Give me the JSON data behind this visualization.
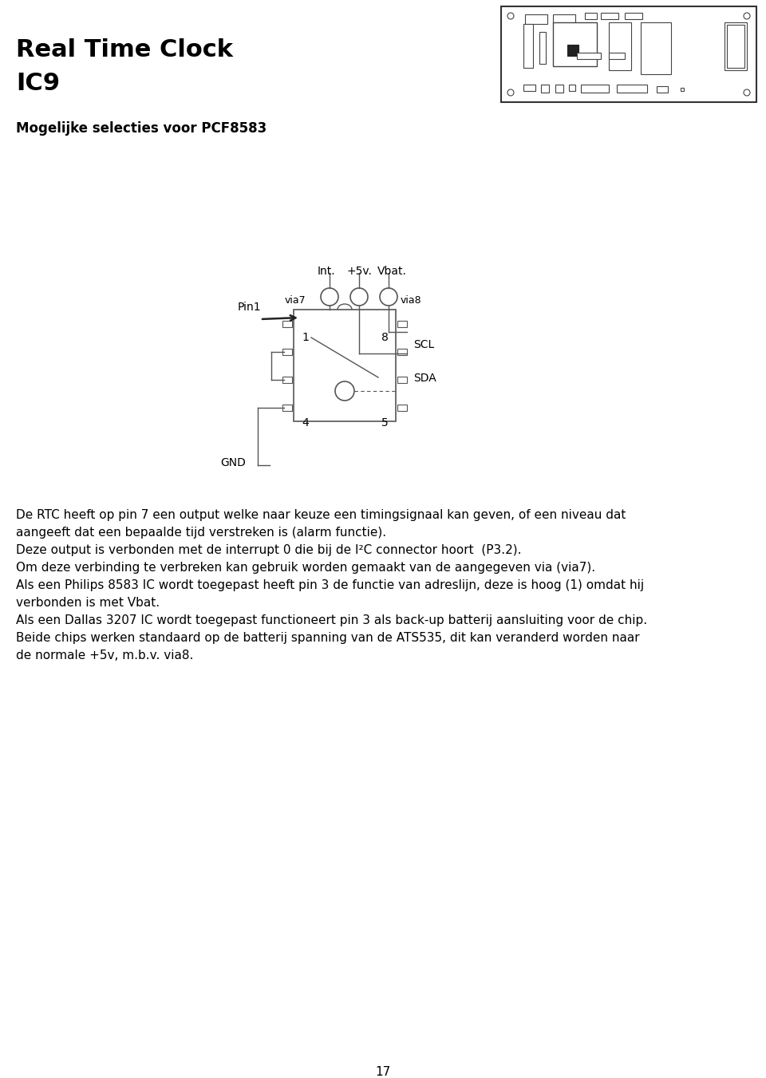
{
  "title_line1": "Real Time Clock",
  "title_line2": "IC9",
  "subtitle": "Mogelijke selecties voor PCF8583",
  "body_text": [
    "De RTC heeft op pin 7 een output welke naar keuze een timingsignaal kan geven, of een niveau dat",
    "aangeeft dat een bepaalde tijd verstreken is (alarm functie).",
    "Deze output is verbonden met de interrupt 0 die bij de I²C connector hoort  (P3.2).",
    "Om deze verbinding te verbreken kan gebruik worden gemaakt van de aangegeven via (via7).",
    "Als een Philips 8583 IC wordt toegepast heeft pin 3 de functie van adreslijn, deze is hoog (1) omdat hij",
    "verbonden is met Vbat.",
    "Als een Dallas 3207 IC wordt toegepast functioneert pin 3 als back-up batterij aansluiting voor de chip.",
    "Beide chips werken standaard op de batterij spanning van de ATS535, dit kan veranderd worden naar",
    "de normale +5v, m.b.v. via8."
  ],
  "page_number": "17",
  "bg_color": "#ffffff",
  "text_color": "#000000",
  "diagram_color": "#1a1a1a"
}
